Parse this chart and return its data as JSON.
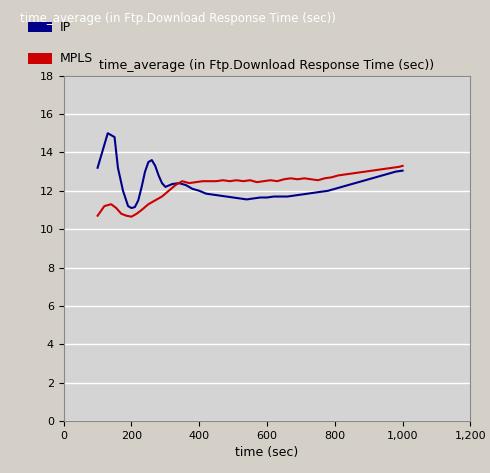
{
  "title": "time_average (in Ftp.Download Response Time (sec))",
  "window_title": "time_average (in Ftp.Download Response Time (sec))",
  "xlabel": "time (sec)",
  "ylabel": "",
  "xlim": [
    0,
    1200
  ],
  "ylim": [
    0,
    18
  ],
  "xticks": [
    0,
    200,
    400,
    600,
    800,
    1000,
    1200
  ],
  "yticks": [
    0,
    2,
    4,
    6,
    8,
    10,
    12,
    14,
    16,
    18
  ],
  "xtick_labels": [
    "0",
    "200",
    "400",
    "600",
    "800",
    "1,000",
    "1,200"
  ],
  "ytick_labels": [
    "0",
    "2",
    "4",
    "6",
    "8",
    "10",
    "12",
    "14",
    "16",
    "18"
  ],
  "bg_color": "#d4d0c8",
  "plot_bg_color": "#d4d4d4",
  "grid_color": "white",
  "legend_labels": [
    "IP",
    "MPLS"
  ],
  "legend_colors": [
    "#00008b",
    "#cc0000"
  ],
  "ip_x": [
    100,
    130,
    150,
    160,
    175,
    190,
    200,
    210,
    220,
    230,
    240,
    250,
    260,
    270,
    280,
    290,
    300,
    320,
    340,
    360,
    380,
    400,
    420,
    440,
    460,
    480,
    500,
    520,
    540,
    560,
    580,
    600,
    620,
    640,
    660,
    680,
    700,
    720,
    740,
    760,
    780,
    800,
    820,
    840,
    860,
    880,
    900,
    920,
    940,
    960,
    980,
    1000
  ],
  "ip_y": [
    13.2,
    15.0,
    14.8,
    13.2,
    12.0,
    11.2,
    11.1,
    11.15,
    11.5,
    12.2,
    13.0,
    13.5,
    13.6,
    13.3,
    12.8,
    12.4,
    12.2,
    12.35,
    12.4,
    12.3,
    12.1,
    12.0,
    11.85,
    11.8,
    11.75,
    11.7,
    11.65,
    11.6,
    11.55,
    11.6,
    11.65,
    11.65,
    11.7,
    11.7,
    11.7,
    11.75,
    11.8,
    11.85,
    11.9,
    11.95,
    12.0,
    12.1,
    12.2,
    12.3,
    12.4,
    12.5,
    12.6,
    12.7,
    12.8,
    12.9,
    13.0,
    13.05
  ],
  "mpls_x": [
    100,
    120,
    140,
    155,
    170,
    185,
    200,
    215,
    230,
    250,
    270,
    290,
    310,
    330,
    350,
    370,
    390,
    410,
    430,
    450,
    470,
    490,
    510,
    530,
    550,
    570,
    590,
    610,
    630,
    650,
    670,
    690,
    710,
    730,
    750,
    770,
    790,
    810,
    830,
    850,
    870,
    890,
    910,
    930,
    950,
    970,
    990,
    1000
  ],
  "mpls_y": [
    10.7,
    11.2,
    11.3,
    11.1,
    10.8,
    10.7,
    10.65,
    10.8,
    11.0,
    11.3,
    11.5,
    11.7,
    12.0,
    12.3,
    12.5,
    12.4,
    12.45,
    12.5,
    12.5,
    12.5,
    12.55,
    12.5,
    12.55,
    12.5,
    12.55,
    12.45,
    12.5,
    12.55,
    12.5,
    12.6,
    12.65,
    12.6,
    12.65,
    12.6,
    12.55,
    12.65,
    12.7,
    12.8,
    12.85,
    12.9,
    12.95,
    13.0,
    13.05,
    13.1,
    13.15,
    13.2,
    13.25,
    13.3
  ]
}
